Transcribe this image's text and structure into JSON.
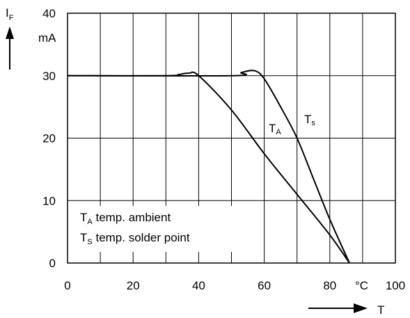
{
  "chart_data": {
    "type": "line",
    "xlim": [
      0,
      100
    ],
    "ylim": [
      0,
      40
    ],
    "grid": true,
    "x_ticks": [
      0,
      20,
      40,
      60,
      80,
      100
    ],
    "y_ticks": [
      0,
      10,
      20,
      30,
      40
    ],
    "x_tick_labels": [
      "0",
      "20",
      "40",
      "60",
      "80",
      "100"
    ],
    "y_tick_labels": [
      "0",
      "10",
      "20",
      "30",
      "40"
    ],
    "x_unit": "°C",
    "y_unit": "mA",
    "xlabel": "T",
    "ylabel": "I",
    "ylabel_sub": "F",
    "series": [
      {
        "name": "T",
        "name_sub": "A",
        "x": [
          0,
          30,
          34,
          37,
          40,
          50,
          60,
          70,
          80,
          86
        ],
        "y": [
          30,
          30,
          30.2,
          30.4,
          30,
          24.5,
          17.5,
          11,
          4.5,
          0
        ]
      },
      {
        "name": "T",
        "name_sub": "s",
        "x": [
          0,
          50,
          53,
          57,
          60,
          65,
          70,
          75,
          80,
          86
        ],
        "y": [
          30,
          30,
          30.5,
          30.8,
          29.5,
          25,
          20,
          13.5,
          7,
          0
        ]
      }
    ],
    "legend": [
      {
        "symbol": "T",
        "sub": "A",
        "text": "temp. ambient"
      },
      {
        "symbol": "T",
        "sub": "S",
        "text": "temp. solder point"
      }
    ]
  }
}
